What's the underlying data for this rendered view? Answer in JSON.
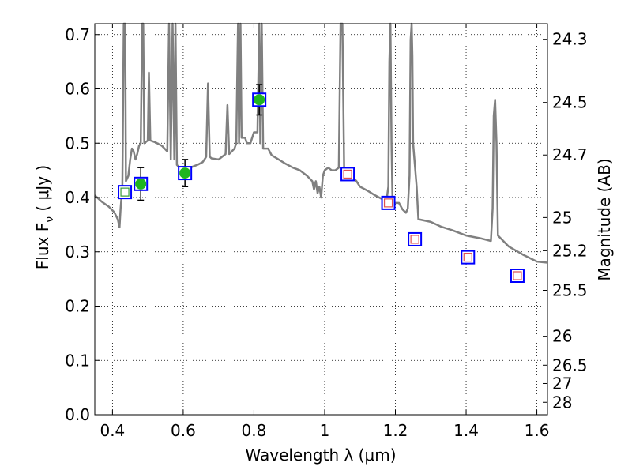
{
  "chart_data": {
    "type": "scatter",
    "xlabel": "Wavelength  λ (μm)",
    "ylabel": "Flux  F",
    "ylabel_sub": "ν",
    "ylabel_unit": "  ( μJy )",
    "y2label": "Magnitude (AB)",
    "xlim": [
      0.35,
      1.63
    ],
    "ylim": [
      0.0,
      0.72
    ],
    "grid": true,
    "x_ticks": [
      {
        "v": 0.4,
        "label": "0.4"
      },
      {
        "v": 0.6,
        "label": "0.6"
      },
      {
        "v": 0.8,
        "label": "0.8"
      },
      {
        "v": 1.0,
        "label": "1"
      },
      {
        "v": 1.2,
        "label": "1.2"
      },
      {
        "v": 1.4,
        "label": "1.4"
      },
      {
        "v": 1.6,
        "label": "1.6"
      }
    ],
    "y_ticks": [
      {
        "v": 0.0,
        "label": "0.0"
      },
      {
        "v": 0.1,
        "label": "0.1"
      },
      {
        "v": 0.2,
        "label": "0.2"
      },
      {
        "v": 0.3,
        "label": "0.3"
      },
      {
        "v": 0.4,
        "label": "0.4"
      },
      {
        "v": 0.5,
        "label": "0.5"
      },
      {
        "v": 0.6,
        "label": "0.6"
      },
      {
        "v": 0.7,
        "label": "0.7"
      }
    ],
    "mag_ticks": [
      {
        "v": 0.6913,
        "label": "24.3"
      },
      {
        "v": 0.575,
        "label": "24.5"
      },
      {
        "v": 0.4782,
        "label": "24.7"
      },
      {
        "v": 0.3631,
        "label": "25"
      },
      {
        "v": 0.302,
        "label": "25.2"
      },
      {
        "v": 0.2291,
        "label": "25.5"
      },
      {
        "v": 0.1445,
        "label": "26"
      },
      {
        "v": 0.0912,
        "label": "26.5"
      },
      {
        "v": 0.0575,
        "label": "27"
      },
      {
        "v": 0.0229,
        "label": "28"
      }
    ],
    "model_spectrum": {
      "color": "#808080",
      "points": [
        [
          0.35,
          0.404
        ],
        [
          0.37,
          0.392
        ],
        [
          0.39,
          0.383
        ],
        [
          0.405,
          0.373
        ],
        [
          0.415,
          0.36
        ],
        [
          0.42,
          0.345
        ],
        [
          0.423,
          0.38
        ],
        [
          0.428,
          0.42
        ],
        [
          0.432,
          0.72
        ],
        [
          0.436,
          0.72
        ],
        [
          0.438,
          0.43
        ],
        [
          0.445,
          0.44
        ],
        [
          0.45,
          0.47
        ],
        [
          0.455,
          0.49
        ],
        [
          0.46,
          0.485
        ],
        [
          0.465,
          0.47
        ],
        [
          0.47,
          0.48
        ],
        [
          0.475,
          0.495
        ],
        [
          0.48,
          0.5
        ],
        [
          0.484,
          0.72
        ],
        [
          0.487,
          0.72
        ],
        [
          0.49,
          0.5
        ],
        [
          0.5,
          0.505
        ],
        [
          0.503,
          0.63
        ],
        [
          0.507,
          0.505
        ],
        [
          0.52,
          0.502
        ],
        [
          0.54,
          0.495
        ],
        [
          0.555,
          0.485
        ],
        [
          0.56,
          0.72
        ],
        [
          0.565,
          0.47
        ],
        [
          0.57,
          0.72
        ],
        [
          0.575,
          0.47
        ],
        [
          0.578,
          0.72
        ],
        [
          0.582,
          0.46
        ],
        [
          0.59,
          0.455
        ],
        [
          0.6,
          0.45
        ],
        [
          0.62,
          0.455
        ],
        [
          0.64,
          0.46
        ],
        [
          0.655,
          0.465
        ],
        [
          0.66,
          0.47
        ],
        [
          0.665,
          0.475
        ],
        [
          0.67,
          0.61
        ],
        [
          0.675,
          0.475
        ],
        [
          0.68,
          0.472
        ],
        [
          0.7,
          0.47
        ],
        [
          0.72,
          0.48
        ],
        [
          0.725,
          0.57
        ],
        [
          0.73,
          0.48
        ],
        [
          0.745,
          0.49
        ],
        [
          0.75,
          0.5
        ],
        [
          0.755,
          0.72
        ],
        [
          0.758,
          0.5
        ],
        [
          0.762,
          0.72
        ],
        [
          0.765,
          0.51
        ],
        [
          0.775,
          0.51
        ],
        [
          0.78,
          0.5
        ],
        [
          0.79,
          0.5
        ],
        [
          0.8,
          0.52
        ],
        [
          0.81,
          0.52
        ],
        [
          0.815,
          0.72
        ],
        [
          0.818,
          0.5
        ],
        [
          0.822,
          0.72
        ],
        [
          0.826,
          0.49
        ],
        [
          0.84,
          0.49
        ],
        [
          0.85,
          0.478
        ],
        [
          0.87,
          0.47
        ],
        [
          0.89,
          0.462
        ],
        [
          0.91,
          0.455
        ],
        [
          0.93,
          0.45
        ],
        [
          0.95,
          0.44
        ],
        [
          0.965,
          0.43
        ],
        [
          0.97,
          0.415
        ],
        [
          0.975,
          0.43
        ],
        [
          0.98,
          0.408
        ],
        [
          0.985,
          0.42
        ],
        [
          0.99,
          0.4
        ],
        [
          0.995,
          0.44
        ],
        [
          1.0,
          0.45
        ],
        [
          1.01,
          0.455
        ],
        [
          1.02,
          0.45
        ],
        [
          1.03,
          0.45
        ],
        [
          1.04,
          0.455
        ],
        [
          1.045,
          0.72
        ],
        [
          1.05,
          0.72
        ],
        [
          1.055,
          0.455
        ],
        [
          1.065,
          0.45
        ],
        [
          1.075,
          0.44
        ],
        [
          1.09,
          0.43
        ],
        [
          1.1,
          0.42
        ],
        [
          1.12,
          0.413
        ],
        [
          1.14,
          0.405
        ],
        [
          1.16,
          0.398
        ],
        [
          1.175,
          0.395
        ],
        [
          1.18,
          0.42
        ],
        [
          1.183,
          0.65
        ],
        [
          1.186,
          0.72
        ],
        [
          1.189,
          0.5
        ],
        [
          1.192,
          0.39
        ],
        [
          1.21,
          0.39
        ],
        [
          1.22,
          0.378
        ],
        [
          1.23,
          0.372
        ],
        [
          1.235,
          0.38
        ],
        [
          1.24,
          0.44
        ],
        [
          1.243,
          0.69
        ],
        [
          1.246,
          0.72
        ],
        [
          1.248,
          0.66
        ],
        [
          1.25,
          0.5
        ],
        [
          1.26,
          0.42
        ],
        [
          1.265,
          0.36
        ],
        [
          1.3,
          0.355
        ],
        [
          1.33,
          0.346
        ],
        [
          1.36,
          0.34
        ],
        [
          1.4,
          0.33
        ],
        [
          1.44,
          0.325
        ],
        [
          1.47,
          0.32
        ],
        [
          1.475,
          0.38
        ],
        [
          1.478,
          0.55
        ],
        [
          1.482,
          0.58
        ],
        [
          1.486,
          0.5
        ],
        [
          1.49,
          0.33
        ],
        [
          1.52,
          0.31
        ],
        [
          1.56,
          0.295
        ],
        [
          1.6,
          0.282
        ],
        [
          1.63,
          0.28
        ]
      ]
    },
    "observed_points": {
      "color": "#1fb51f",
      "points": [
        {
          "x": 0.48,
          "y": 0.425,
          "yerr": 0.03
        },
        {
          "x": 0.605,
          "y": 0.445,
          "yerr": 0.025
        },
        {
          "x": 0.815,
          "y": 0.58,
          "yerr": 0.028
        }
      ]
    },
    "model_boxes": {
      "color": "#0000ff",
      "points": [
        {
          "x": 0.435,
          "y": 0.41
        },
        {
          "x": 0.48,
          "y": 0.425
        },
        {
          "x": 0.605,
          "y": 0.445
        },
        {
          "x": 0.815,
          "y": 0.58
        },
        {
          "x": 1.065,
          "y": 0.443
        },
        {
          "x": 1.18,
          "y": 0.39
        },
        {
          "x": 1.255,
          "y": 0.323
        },
        {
          "x": 1.405,
          "y": 0.29
        },
        {
          "x": 1.545,
          "y": 0.256
        }
      ]
    },
    "inner_boxes": [
      {
        "x": 0.435,
        "y": 0.41,
        "color": "#3a9a3a"
      },
      {
        "x": 1.065,
        "y": 0.443,
        "color": "#e05050"
      },
      {
        "x": 1.18,
        "y": 0.39,
        "color": "#e05050"
      },
      {
        "x": 1.255,
        "y": 0.323,
        "color": "#e05050"
      },
      {
        "x": 1.405,
        "y": 0.29,
        "color": "#e05050"
      },
      {
        "x": 1.545,
        "y": 0.256,
        "color": "#e05050"
      }
    ]
  }
}
